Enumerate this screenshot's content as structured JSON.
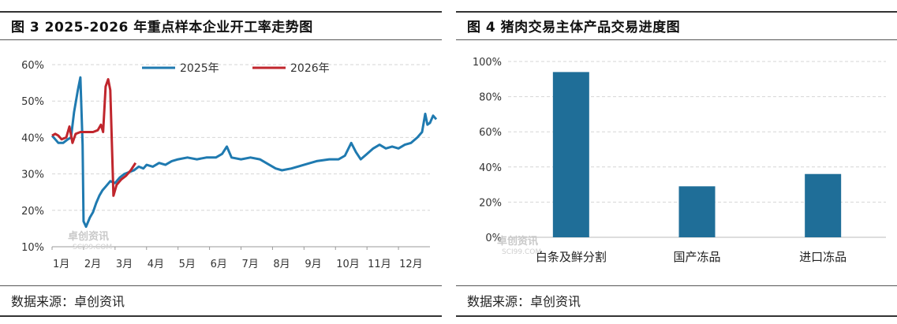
{
  "charts": [
    {
      "figure_title": "图 3  2025-2026 年重点样本企业开工率走势图",
      "source": "数据来源：卓创资讯",
      "watermark": "卓创资讯 SCI99.COM"
    },
    {
      "figure_title": "图 4  猪肉交易主体产品交易进度图",
      "source": "数据来源：卓创资讯",
      "watermark": "卓创资讯 SCI99.COM"
    }
  ],
  "chart_data": [
    {
      "type": "line",
      "title": "图 3  2025-2026 年重点样本企业开工率走势图",
      "xlabel": "",
      "ylabel": "",
      "ylim": [
        10,
        60
      ],
      "xlim": [
        0,
        12
      ],
      "y_ticks": [
        "10%",
        "20%",
        "30%",
        "40%",
        "50%",
        "60%"
      ],
      "x_ticks": [
        "1月",
        "2月",
        "3月",
        "4月",
        "5月",
        "6月",
        "7月",
        "8月",
        "9月",
        "10月",
        "11月",
        "12月"
      ],
      "grid": "horizontal dashed",
      "legend": "top-center",
      "series": [
        {
          "name": "2025年",
          "color": "#1f7ab0",
          "points": [
            [
              0.0,
              40.5
            ],
            [
              0.1,
              39.5
            ],
            [
              0.2,
              38.5
            ],
            [
              0.35,
              38.5
            ],
            [
              0.5,
              39.5
            ],
            [
              0.6,
              40.0
            ],
            [
              0.7,
              47.0
            ],
            [
              0.82,
              53.0
            ],
            [
              0.9,
              56.5
            ],
            [
              0.97,
              38.0
            ],
            [
              1.0,
              17.0
            ],
            [
              1.08,
              15.5
            ],
            [
              1.2,
              18.0
            ],
            [
              1.3,
              19.5
            ],
            [
              1.4,
              22.0
            ],
            [
              1.5,
              24.0
            ],
            [
              1.6,
              25.5
            ],
            [
              1.7,
              26.5
            ],
            [
              1.85,
              28.0
            ],
            [
              2.0,
              27.5
            ],
            [
              2.15,
              29.0
            ],
            [
              2.3,
              30.0
            ],
            [
              2.45,
              30.5
            ],
            [
              2.6,
              31.0
            ],
            [
              2.75,
              32.0
            ],
            [
              2.9,
              31.5
            ],
            [
              3.0,
              32.5
            ],
            [
              3.2,
              32.0
            ],
            [
              3.4,
              33.0
            ],
            [
              3.6,
              32.5
            ],
            [
              3.8,
              33.5
            ],
            [
              4.0,
              34.0
            ],
            [
              4.3,
              34.5
            ],
            [
              4.6,
              34.0
            ],
            [
              4.9,
              34.5
            ],
            [
              5.2,
              34.5
            ],
            [
              5.4,
              35.5
            ],
            [
              5.55,
              37.5
            ],
            [
              5.7,
              34.5
            ],
            [
              6.0,
              34.0
            ],
            [
              6.3,
              34.5
            ],
            [
              6.6,
              34.0
            ],
            [
              6.9,
              32.5
            ],
            [
              7.1,
              31.5
            ],
            [
              7.3,
              31.0
            ],
            [
              7.6,
              31.5
            ],
            [
              8.0,
              32.5
            ],
            [
              8.4,
              33.5
            ],
            [
              8.8,
              34.0
            ],
            [
              9.1,
              34.0
            ],
            [
              9.3,
              35.0
            ],
            [
              9.5,
              38.5
            ],
            [
              9.65,
              36.0
            ],
            [
              9.8,
              34.0
            ],
            [
              10.0,
              35.5
            ],
            [
              10.2,
              37.0
            ],
            [
              10.4,
              38.0
            ],
            [
              10.6,
              37.0
            ],
            [
              10.8,
              37.5
            ],
            [
              11.0,
              37.0
            ],
            [
              11.2,
              38.0
            ],
            [
              11.4,
              38.5
            ],
            [
              11.6,
              40.0
            ],
            [
              11.75,
              41.5
            ],
            [
              11.85,
              46.5
            ],
            [
              11.92,
              43.5
            ],
            [
              12.0,
              44.0
            ],
            [
              12.1,
              46.0
            ],
            [
              12.2,
              45.0
            ]
          ]
        },
        {
          "name": "2026年",
          "color": "#c0262d",
          "points": [
            [
              0.0,
              40.5
            ],
            [
              0.1,
              41.0
            ],
            [
              0.2,
              40.5
            ],
            [
              0.3,
              39.5
            ],
            [
              0.45,
              40.0
            ],
            [
              0.55,
              43.0
            ],
            [
              0.65,
              38.5
            ],
            [
              0.75,
              41.0
            ],
            [
              0.9,
              41.5
            ],
            [
              1.0,
              41.5
            ],
            [
              1.15,
              41.5
            ],
            [
              1.3,
              41.5
            ],
            [
              1.45,
              42.0
            ],
            [
              1.55,
              43.5
            ],
            [
              1.62,
              41.5
            ],
            [
              1.7,
              54.0
            ],
            [
              1.78,
              56.0
            ],
            [
              1.85,
              53.0
            ],
            [
              1.95,
              24.0
            ],
            [
              2.05,
              27.0
            ],
            [
              2.2,
              28.5
            ],
            [
              2.35,
              29.5
            ],
            [
              2.5,
              31.0
            ],
            [
              2.65,
              33.0
            ]
          ]
        }
      ]
    },
    {
      "type": "bar",
      "title": "图 4  猪肉交易主体产品交易进度图",
      "xlabel": "",
      "ylabel": "",
      "ylim": [
        0,
        100
      ],
      "y_ticks": [
        "0%",
        "20%",
        "40%",
        "60%",
        "80%",
        "100%"
      ],
      "grid": "horizontal dashed",
      "categories": [
        "白条及鲜分割",
        "国产冻品",
        "进口冻品"
      ],
      "values": [
        94,
        29,
        36
      ],
      "color": "#1f6e98"
    }
  ]
}
